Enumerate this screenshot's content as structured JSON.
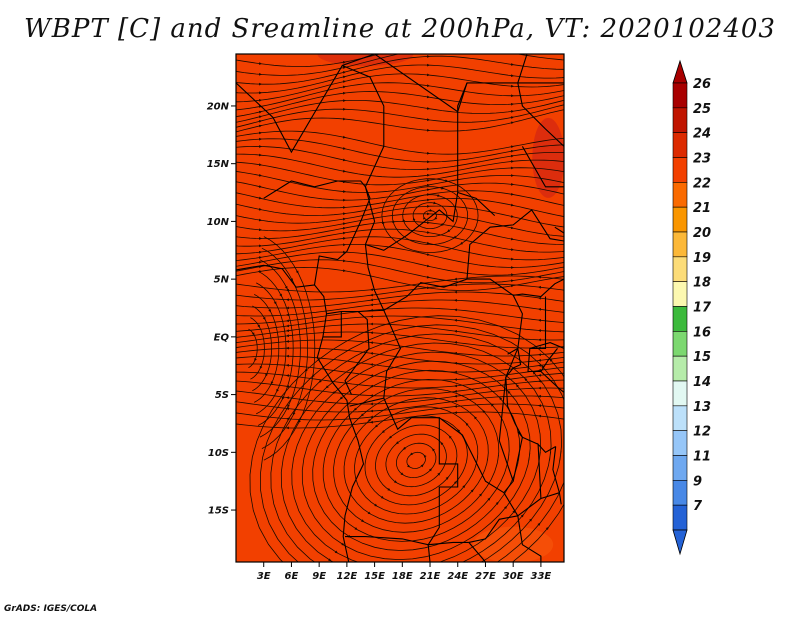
{
  "title": "WBPT [C] and Sreamline at 200hPa, VT: 2020102403",
  "footer": "GrADS: IGES/COLA",
  "map": {
    "lon_range": [
      0,
      35.5
    ],
    "lat_range": [
      -19.5,
      24.5
    ],
    "x_ticks": [
      {
        "value": 3,
        "label": "3E"
      },
      {
        "value": 6,
        "label": "6E"
      },
      {
        "value": 9,
        "label": "9E"
      },
      {
        "value": 12,
        "label": "12E"
      },
      {
        "value": 15,
        "label": "15E"
      },
      {
        "value": 18,
        "label": "18E"
      },
      {
        "value": 21,
        "label": "21E"
      },
      {
        "value": 24,
        "label": "24E"
      },
      {
        "value": 27,
        "label": "27E"
      },
      {
        "value": 30,
        "label": "30E"
      },
      {
        "value": 33,
        "label": "33E"
      }
    ],
    "y_ticks": [
      {
        "value": 20,
        "label": "20N"
      },
      {
        "value": 15,
        "label": "15N"
      },
      {
        "value": 10,
        "label": "10N"
      },
      {
        "value": 5,
        "label": "5N"
      },
      {
        "value": 0,
        "label": "EQ"
      },
      {
        "value": -5,
        "label": "5S"
      },
      {
        "value": -10,
        "label": "10S"
      },
      {
        "value": -15,
        "label": "15S"
      }
    ],
    "field_color": "#f24000",
    "warm_patch_color": "#d62810",
    "cool_patch_color": "#f86010",
    "streamline_color": "#1a0a00",
    "coast_color": "#000000"
  },
  "colorbar": {
    "levels": [
      {
        "label": "26",
        "color": "#a80000"
      },
      {
        "label": "25",
        "color": "#c01400"
      },
      {
        "label": "24",
        "color": "#dc2a00"
      },
      {
        "label": "23",
        "color": "#f24000"
      },
      {
        "label": "22",
        "color": "#fa6a00"
      },
      {
        "label": "21",
        "color": "#fa9600"
      },
      {
        "label": "20",
        "color": "#fcb838"
      },
      {
        "label": "19",
        "color": "#fcdc78"
      },
      {
        "label": "18",
        "color": "#fcf8b0"
      },
      {
        "label": "17",
        "color": "#3cba3c"
      },
      {
        "label": "16",
        "color": "#7cd870"
      },
      {
        "label": "15",
        "color": "#b6ecaa"
      },
      {
        "label": "14",
        "color": "#e2f8f2"
      },
      {
        "label": "13",
        "color": "#bce0fa"
      },
      {
        "label": "12",
        "color": "#96c6f8"
      },
      {
        "label": "11",
        "color": "#6ea8f0"
      },
      {
        "label": "9",
        "color": "#4888e6"
      },
      {
        "label": "7",
        "color": "#2462d6"
      }
    ]
  }
}
